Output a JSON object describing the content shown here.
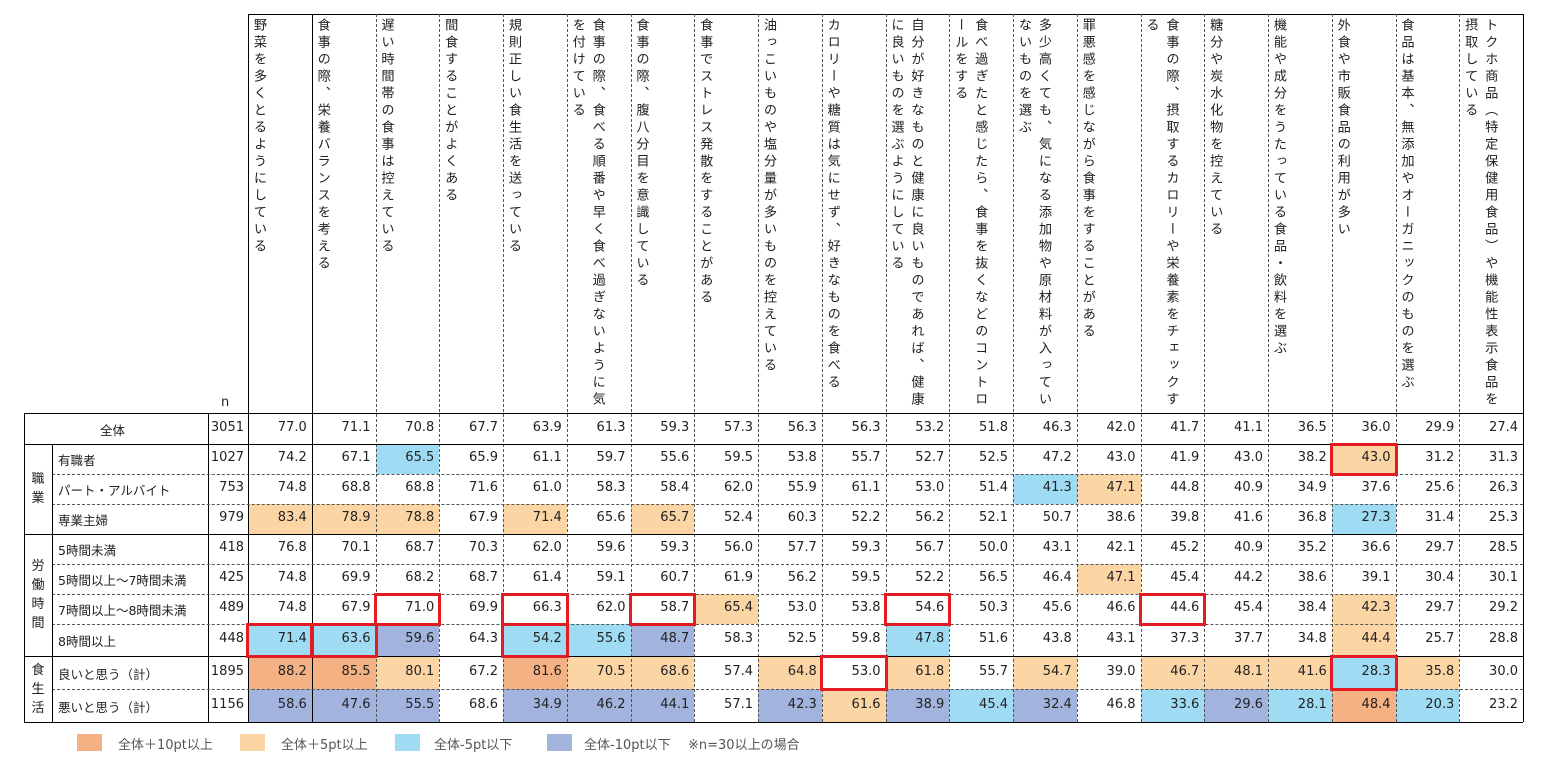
{
  "chart_data": {
    "type": "table",
    "n_label": "n",
    "columns": [
      "野菜を多くとるようにしている",
      "食事の際、栄養バランスを考える",
      "遅い時間帯の食事は控えている",
      "間食することがよくある",
      "規則正しい食生活を送っている",
      "食事の際、食べる順番や早く食べ過ぎないように気を付けている",
      "食事の際、腹八分目を意識している",
      "食事でストレス発散をすることがある",
      "油っこいものや塩分量が多いものを控えている",
      "カロリーや糖質は気にせず、好きなものを食べる",
      "自分が好きなものと健康に良いものであれば、健康に良いものを選ぶようにしている",
      "食べ過ぎたと感じたら、食事を抜くなどのコントロールをする",
      "多少高くても、気になる添加物や原材料が入っていないものを選ぶ",
      "罪悪感を感じながら食事をすることがある",
      "食事の際、摂取するカロリーや栄養素をチェックする",
      "糖分や炭水化物を控えている",
      "機能や成分をうたっている食品・飲料を選ぶ",
      "外食や市販食品の利用が多い",
      "食品は基本、無添加やオーガニックのものを選ぶ",
      "トクホ商品（特定保健用食品）や機能性表示食品を摂取している"
    ],
    "total": {
      "label": "全体",
      "n": 3051,
      "values": [
        77.0,
        71.1,
        70.8,
        67.7,
        63.9,
        61.3,
        59.3,
        57.3,
        56.3,
        56.3,
        53.2,
        51.8,
        46.3,
        42.0,
        41.7,
        41.1,
        36.5,
        36.0,
        29.9,
        27.4
      ]
    },
    "groups": [
      {
        "label": "職業",
        "rows": [
          {
            "label": "有職者",
            "n": 1027,
            "values": [
              74.2,
              67.1,
              65.5,
              65.9,
              61.1,
              59.7,
              55.6,
              59.5,
              53.8,
              55.7,
              52.7,
              52.5,
              47.2,
              43.0,
              41.9,
              43.0,
              38.2,
              43.0,
              31.2,
              31.3
            ]
          },
          {
            "label": "パート・アルバイト",
            "n": 753,
            "values": [
              74.8,
              68.8,
              68.8,
              71.6,
              61.0,
              58.3,
              58.4,
              62.0,
              55.9,
              61.1,
              53.0,
              51.4,
              41.3,
              47.1,
              44.8,
              40.9,
              34.9,
              37.6,
              25.6,
              26.3
            ]
          },
          {
            "label": "専業主婦",
            "n": 979,
            "values": [
              83.4,
              78.9,
              78.8,
              67.9,
              71.4,
              65.6,
              65.7,
              52.4,
              60.3,
              52.2,
              56.2,
              52.1,
              50.7,
              38.6,
              39.8,
              41.6,
              36.8,
              27.3,
              31.4,
              25.3
            ]
          }
        ]
      },
      {
        "label": "労働時間",
        "rows": [
          {
            "label": "5時間未満",
            "n": 418,
            "values": [
              76.8,
              70.1,
              68.7,
              70.3,
              62.0,
              59.6,
              59.3,
              56.0,
              57.7,
              59.3,
              56.7,
              50.0,
              43.1,
              42.1,
              45.2,
              40.9,
              35.2,
              36.6,
              29.7,
              28.5
            ]
          },
          {
            "label": "5時間以上～7時間未満",
            "n": 425,
            "values": [
              74.8,
              69.9,
              68.2,
              68.7,
              61.4,
              59.1,
              60.7,
              61.9,
              56.2,
              59.5,
              52.2,
              56.5,
              46.4,
              47.1,
              45.4,
              44.2,
              38.6,
              39.1,
              30.4,
              30.1
            ]
          },
          {
            "label": "7時間以上～8時間未満",
            "n": 489,
            "values": [
              74.8,
              67.9,
              71.0,
              69.9,
              66.3,
              62.0,
              58.7,
              65.4,
              53.0,
              53.8,
              54.6,
              50.3,
              45.6,
              46.6,
              44.6,
              45.4,
              38.4,
              42.3,
              29.7,
              29.2
            ]
          },
          {
            "label": "8時間以上",
            "n": 448,
            "values": [
              71.4,
              63.6,
              59.6,
              64.3,
              54.2,
              55.6,
              48.7,
              58.3,
              52.5,
              59.8,
              47.8,
              51.6,
              43.8,
              43.1,
              37.3,
              37.7,
              34.8,
              44.4,
              25.7,
              28.8
            ]
          }
        ]
      },
      {
        "label": "食生活",
        "rows": [
          {
            "label": "良いと思う（計）",
            "n": 1895,
            "values": [
              88.2,
              85.5,
              80.1,
              67.2,
              81.6,
              70.5,
              68.6,
              57.4,
              64.8,
              53.0,
              61.8,
              55.7,
              54.7,
              39.0,
              46.7,
              48.1,
              41.6,
              28.3,
              35.8,
              30.0
            ]
          },
          {
            "label": "悪いと思う（計）",
            "n": 1156,
            "values": [
              58.6,
              47.6,
              55.5,
              68.6,
              34.9,
              46.2,
              44.1,
              57.1,
              42.3,
              61.6,
              38.9,
              45.4,
              32.4,
              46.8,
              33.6,
              29.6,
              28.1,
              48.4,
              20.3,
              23.2
            ]
          }
        ]
      }
    ],
    "highlight_rule": {
      "colors": {
        "plus10": "#f4b183",
        "plus5": "#fcd5a5",
        "minus5": "#9fdcf4",
        "minus10": "#a2b4dd"
      },
      "border_color": "#e31b23"
    },
    "legend": [
      {
        "key": "plus10",
        "label": "全体＋10pt以上",
        "color": "#f4b183"
      },
      {
        "key": "plus5",
        "label": "全体＋5pt以上",
        "color": "#fcd5a5"
      },
      {
        "key": "minus5",
        "label": "全体-5pt以下",
        "color": "#9fdcf4"
      },
      {
        "key": "minus10",
        "label": "全体-10pt以下",
        "color": "#a2b4dd"
      }
    ],
    "note": "※n=30以上の場合"
  }
}
